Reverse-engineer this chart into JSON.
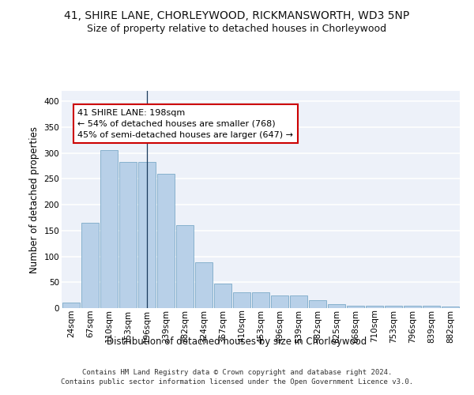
{
  "title_line1": "41, SHIRE LANE, CHORLEYWOOD, RICKMANSWORTH, WD3 5NP",
  "title_line2": "Size of property relative to detached houses in Chorleywood",
  "xlabel": "Distribution of detached houses by size in Chorleywood",
  "ylabel": "Number of detached properties",
  "categories": [
    "24sqm",
    "67sqm",
    "110sqm",
    "153sqm",
    "196sqm",
    "239sqm",
    "282sqm",
    "324sqm",
    "367sqm",
    "410sqm",
    "453sqm",
    "496sqm",
    "539sqm",
    "582sqm",
    "625sqm",
    "668sqm",
    "710sqm",
    "753sqm",
    "796sqm",
    "839sqm",
    "882sqm"
  ],
  "values": [
    10,
    165,
    305,
    282,
    282,
    260,
    160,
    88,
    48,
    30,
    30,
    25,
    25,
    15,
    8,
    5,
    5,
    5,
    5,
    5,
    3
  ],
  "bar_color": "#b8d0e8",
  "bar_edge_color": "#6a9fc0",
  "highlight_bar_index": 4,
  "highlight_line_color": "#1a3a5c",
  "annotation_text": "41 SHIRE LANE: 198sqm\n← 54% of detached houses are smaller (768)\n45% of semi-detached houses are larger (647) →",
  "annotation_box_color": "#ffffff",
  "annotation_box_edge_color": "#cc0000",
  "ylim": [
    0,
    420
  ],
  "yticks": [
    0,
    50,
    100,
    150,
    200,
    250,
    300,
    350,
    400
  ],
  "background_color": "#edf1f9",
  "grid_color": "#ffffff",
  "footer_text": "Contains HM Land Registry data © Crown copyright and database right 2024.\nContains public sector information licensed under the Open Government Licence v3.0.",
  "title_fontsize": 10,
  "subtitle_fontsize": 9,
  "axis_label_fontsize": 8.5,
  "tick_fontsize": 7.5,
  "annotation_fontsize": 8,
  "footer_fontsize": 6.5
}
